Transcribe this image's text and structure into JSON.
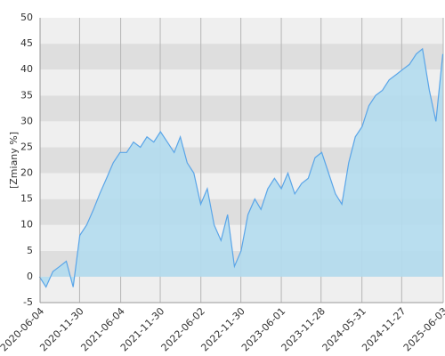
{
  "chart_data": {
    "type": "area",
    "y_label": "[Zmiany %]",
    "x": [
      "2020-06",
      "2020-07",
      "2020-08",
      "2020-09",
      "2020-10",
      "2020-11",
      "2020-12",
      "2021-01",
      "2021-02",
      "2021-03",
      "2021-04",
      "2021-05",
      "2021-06",
      "2021-07",
      "2021-08",
      "2021-09",
      "2021-10",
      "2021-11",
      "2021-12",
      "2022-01",
      "2022-02",
      "2022-03",
      "2022-04",
      "2022-05",
      "2022-06",
      "2022-07",
      "2022-08",
      "2022-09",
      "2022-10",
      "2022-11",
      "2022-12",
      "2023-01",
      "2023-02",
      "2023-03",
      "2023-04",
      "2023-05",
      "2023-06",
      "2023-07",
      "2023-08",
      "2023-09",
      "2023-10",
      "2023-11",
      "2023-12",
      "2024-01",
      "2024-02",
      "2024-03",
      "2024-04",
      "2024-05",
      "2024-06",
      "2024-07",
      "2024-08",
      "2024-09",
      "2024-10",
      "2024-11",
      "2024-12",
      "2025-01",
      "2025-02",
      "2025-03",
      "2025-04",
      "2025-05",
      "2025-06"
    ],
    "values": [
      0,
      -2,
      1,
      2,
      3,
      -2,
      8,
      10,
      13,
      16,
      19,
      22,
      24,
      24,
      26,
      25,
      27,
      26,
      28,
      26,
      24,
      27,
      22,
      20,
      14,
      17,
      10,
      7,
      12,
      2,
      5,
      12,
      15,
      13,
      17,
      19,
      17,
      20,
      16,
      18,
      19,
      23,
      24,
      20,
      16,
      14,
      22,
      27,
      29,
      33,
      35,
      36,
      38,
      39,
      40,
      41,
      43,
      44,
      36,
      30,
      43
    ],
    "color": "#5aa5e8",
    "fill_color": "#b3dcee",
    "xlim": [
      "2020-06-04",
      "2025-06-03"
    ],
    "xticks": [
      "2020-06-04",
      "2020-11-30",
      "2021-06-04",
      "2021-11-30",
      "2022-06-02",
      "2022-11-30",
      "2023-06-01",
      "2023-11-28",
      "2024-05-31",
      "2024-11-27",
      "2025-06-03"
    ],
    "ylim": [
      -5,
      50
    ],
    "yticks": [
      -5,
      0,
      5,
      10,
      15,
      20,
      25,
      30,
      35,
      40,
      45,
      50
    ],
    "grid": true
  }
}
